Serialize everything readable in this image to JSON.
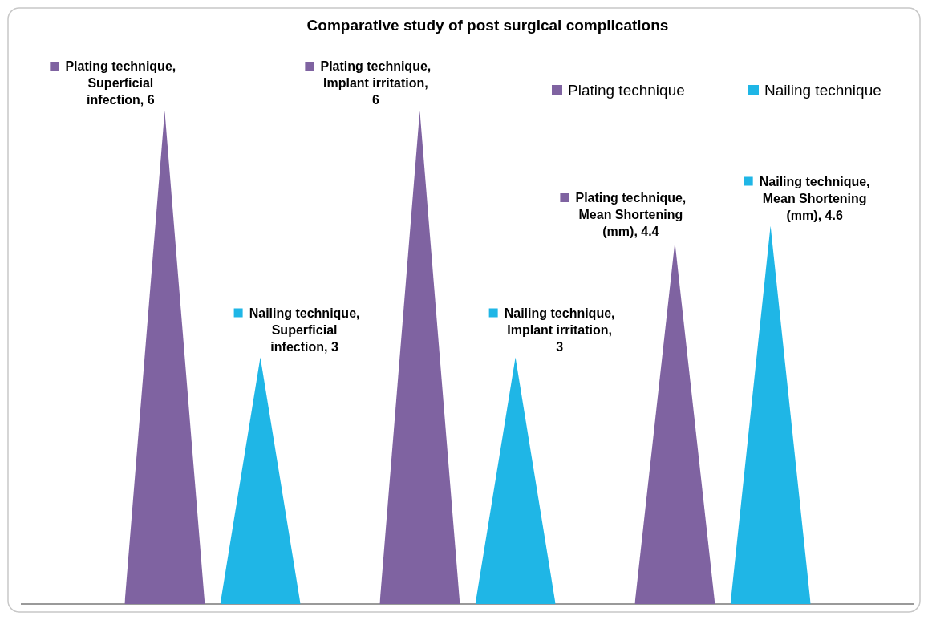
{
  "chart_data": {
    "type": "bar",
    "title": "Comparative study of post surgical complications",
    "categories": [
      null,
      null,
      null
    ],
    "series": [
      {
        "name": "Plating technique",
        "color": "#7f63a1",
        "values": [
          6,
          6,
          4.4
        ],
        "value_labels": [
          "Plating technique, Superficial infection, 6",
          "Plating technique, Implant irritation, 6",
          "Plating technique, Mean Shortening (mm), 4.4"
        ]
      },
      {
        "name": "Nailing technique",
        "color": "#1fb6e6",
        "values": [
          3,
          3,
          4.6
        ],
        "value_labels": [
          "Nailing technique, Superficial infection, 3",
          "Nailing technique, Implant irritation, 3",
          "Nailing technique, Mean Shortening (mm), 4.6"
        ]
      }
    ],
    "legend": "top right"
  }
}
